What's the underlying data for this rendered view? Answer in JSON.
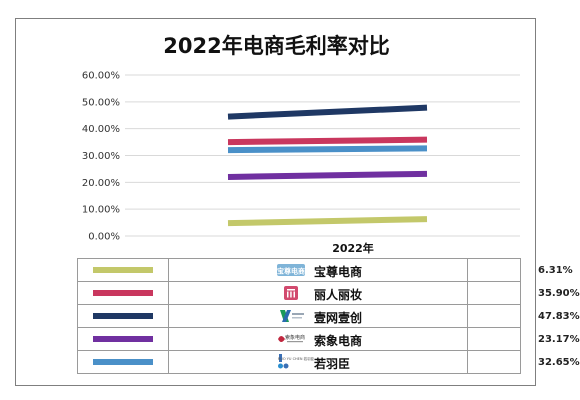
{
  "chart_data": {
    "type": "line",
    "title": "2022年电商毛利率对比",
    "categories": [
      "2022年"
    ],
    "y_ticks": [
      "0.00%",
      "10.00%",
      "20.00%",
      "30.00%",
      "40.00%",
      "50.00%",
      "60.00%"
    ],
    "ylim": [
      0,
      60
    ],
    "grid": true,
    "legend": "bottom-table",
    "series": [
      {
        "name": "宝尊电商",
        "value_label": "6.31%",
        "values": [
          6.31
        ],
        "color": "#c3c86a",
        "icon": "baozun-logo",
        "trend_start": 4.8
      },
      {
        "name": "丽人丽妆",
        "value_label": "35.90%",
        "values": [
          35.9
        ],
        "color": "#c9375e",
        "icon": "liren-logo",
        "trend_start": 35.0
      },
      {
        "name": "壹网壹创",
        "value_label": "47.83%",
        "values": [
          47.83
        ],
        "color": "#1f3864",
        "icon": "yiwang-logo",
        "trend_start": 44.5
      },
      {
        "name": "索象电商",
        "value_label": "23.17%",
        "values": [
          23.17
        ],
        "color": "#7030a0",
        "icon": "suoxiang-logo",
        "trend_start": 22.0
      },
      {
        "name": "若羽臣",
        "value_label": "32.65%",
        "values": [
          32.65
        ],
        "color": "#4a90c8",
        "icon": "ruoyuchen-logo",
        "trend_start": 32.0
      }
    ]
  },
  "logo_text": {
    "baozun": "宝尊电商",
    "suoxiang": "索象电商",
    "ruoyuchen": "RUO YU CHEN 若羽臣"
  }
}
